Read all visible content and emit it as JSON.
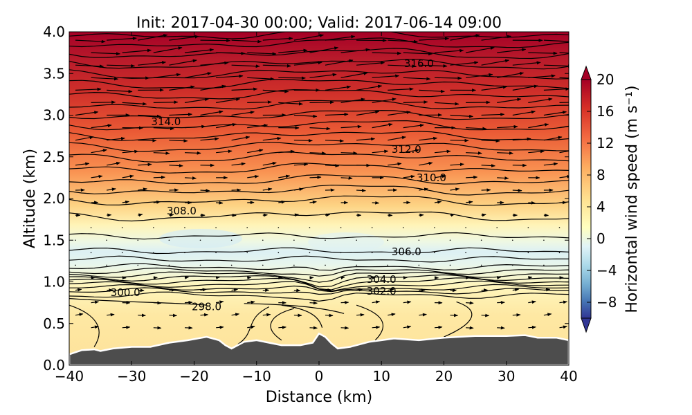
{
  "chart_data": {
    "type": "heatmap",
    "title": "Init: 2017-04-30 00:00; Valid: 2017-06-14 09:00",
    "xlabel": "Distance (km)",
    "ylabel": "Altitude (km)",
    "xlim": [
      -40,
      40
    ],
    "ylim": [
      0.0,
      4.0
    ],
    "x_ticks": [
      "−40",
      "−30",
      "−20",
      "−10",
      "0",
      "10",
      "20",
      "30",
      "40"
    ],
    "y_ticks": [
      "0.0",
      "0.5",
      "1.0",
      "1.5",
      "2.0",
      "2.5",
      "3.0",
      "3.5",
      "4.0"
    ],
    "colorbar": {
      "label": "Horizontal wind speed (m s⁻¹)",
      "range": [
        -10,
        20
      ],
      "ticks": [
        "−8",
        "−4",
        "0",
        "4",
        "8",
        "12",
        "16",
        "20"
      ],
      "extend": "both",
      "colormap": "RdYlBu_r"
    },
    "wind_speed_profile": [
      {
        "altitude": 0.3,
        "speed": 5
      },
      {
        "altitude": 0.8,
        "speed": 5
      },
      {
        "altitude": 1.2,
        "speed": 1
      },
      {
        "altitude": 1.4,
        "speed": -1
      },
      {
        "altitude": 1.6,
        "speed": 1
      },
      {
        "altitude": 2.0,
        "speed": 5
      },
      {
        "altitude": 2.5,
        "speed": 10
      },
      {
        "altitude": 3.0,
        "speed": 15
      },
      {
        "altitude": 3.5,
        "speed": 18
      },
      {
        "altitude": 4.0,
        "speed": 20
      }
    ],
    "contour_labels": [
      {
        "text": "316.0",
        "x": 16,
        "y": 3.62
      },
      {
        "text": "314.0",
        "x": -24.5,
        "y": 2.92
      },
      {
        "text": "312.0",
        "x": 14,
        "y": 2.59
      },
      {
        "text": "310.0",
        "x": 18,
        "y": 2.25
      },
      {
        "text": "308.0",
        "x": -22,
        "y": 1.85
      },
      {
        "text": "306.0",
        "x": 14,
        "y": 1.36
      },
      {
        "text": "304.0",
        "x": 10,
        "y": 1.03
      },
      {
        "text": "302.0",
        "x": 10,
        "y": 0.89
      },
      {
        "text": "300.0",
        "x": -31,
        "y": 0.87
      },
      {
        "text": "298.0",
        "x": -18,
        "y": 0.7
      }
    ],
    "terrain_color": "#4d4d4d"
  }
}
